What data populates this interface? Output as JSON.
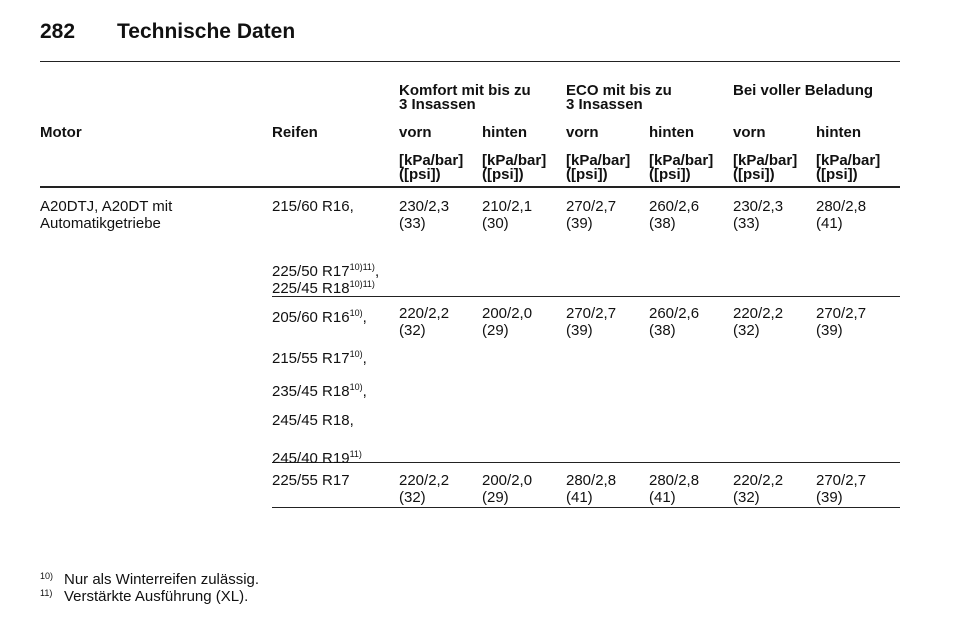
{
  "header": {
    "page_number": "282",
    "title": "Technische Daten"
  },
  "table": {
    "group_headers": [
      [
        "Komfort mit bis zu",
        "3 Insassen"
      ],
      [
        "ECO mit bis zu",
        "3 Insassen"
      ],
      [
        "Bei voller Beladung"
      ]
    ],
    "columns": [
      "Motor",
      "Reifen",
      "vorn",
      "hinten",
      "vorn",
      "hinten",
      "vorn",
      "hinten"
    ],
    "units": [
      [
        "[kPa/bar]",
        "([psi])"
      ],
      [
        "[kPa/bar]",
        "([psi])"
      ],
      [
        "[kPa/bar]",
        "([psi])"
      ],
      [
        "[kPa/bar]",
        "([psi])"
      ],
      [
        "[kPa/bar]",
        "([psi])"
      ],
      [
        "[kPa/bar]",
        "([psi])"
      ]
    ],
    "groups": [
      {
        "engine": [
          "A20DTJ, A20DT mit",
          "Automatikgetriebe"
        ],
        "tires": [
          {
            "text": "215/60 R16,"
          },
          {
            "text": "225/50 R17",
            "sup": "10)11)",
            "suffix": ","
          },
          {
            "text": "225/45 R18",
            "sup": "10)11)"
          }
        ],
        "values": [
          [
            "230/2,3",
            "(33)"
          ],
          [
            "210/2,1",
            "(30)"
          ],
          [
            "270/2,7",
            "(39)"
          ],
          [
            "260/2,6",
            "(38)"
          ],
          [
            "230/2,3",
            "(33)"
          ],
          [
            "280/2,8",
            "(41)"
          ]
        ]
      },
      {
        "tires": [
          {
            "text": "205/60 R16",
            "sup": "10)",
            "suffix": ","
          },
          {
            "text": "215/55 R17",
            "sup": "10)",
            "suffix": ","
          },
          {
            "text": "235/45 R18",
            "sup": "10)",
            "suffix": ","
          },
          {
            "text": "245/45 R18,"
          },
          {
            "text": "245/40 R19",
            "sup": "11)"
          }
        ],
        "values": [
          [
            "220/2,2",
            "(32)"
          ],
          [
            "200/2,0",
            "(29)"
          ],
          [
            "270/2,7",
            "(39)"
          ],
          [
            "260/2,6",
            "(38)"
          ],
          [
            "220/2,2",
            "(32)"
          ],
          [
            "270/2,7",
            "(39)"
          ]
        ]
      },
      {
        "tires": [
          {
            "text": "225/55 R17"
          }
        ],
        "values": [
          [
            "220/2,2",
            "(32)"
          ],
          [
            "200/2,0",
            "(29)"
          ],
          [
            "280/2,8",
            "(41)"
          ],
          [
            "280/2,8",
            "(41)"
          ],
          [
            "220/2,2",
            "(32)"
          ],
          [
            "270/2,7",
            "(39)"
          ]
        ]
      }
    ]
  },
  "footnotes": [
    {
      "mark": "10)",
      "text": "Nur als Winterreifen zulässig."
    },
    {
      "mark": "11)",
      "text": "Verstärkte Ausführung (XL)."
    }
  ]
}
